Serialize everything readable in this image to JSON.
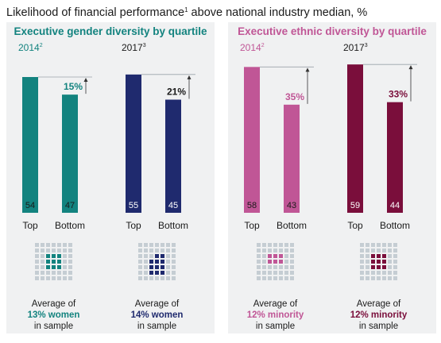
{
  "title": {
    "main": "Likelihood of financial performance",
    "footnote_mark": "1",
    "rest": " above national industry median, %"
  },
  "colors": {
    "teal": "#13837f",
    "navy": "#1f2a6e",
    "pink": "#c05696",
    "maroon": "#7a0e3b",
    "panel_bg": "#f0f1f2",
    "grey_dot": "#c5cdd3",
    "text": "#1a1a1a"
  },
  "panels": [
    {
      "title": "Executive gender diversity by quartile",
      "title_color": "#13837f",
      "charts": [
        {
          "year": "2014",
          "year_note": "2",
          "color": "#13837f",
          "year_color": "#13837f",
          "categories": [
            "Top",
            "Bottom"
          ],
          "values": [
            54,
            47
          ],
          "diff": "15%",
          "diff_color": "#13837f",
          "grid_fill_count": 9,
          "caption": [
            "Average of",
            "13% women",
            "in sample"
          ]
        },
        {
          "year": "2017",
          "year_note": "3",
          "color": "#1f2a6e",
          "year_color": "#1a1a1a",
          "categories": [
            "Top",
            "Bottom"
          ],
          "values": [
            55,
            45
          ],
          "diff": "21%",
          "diff_color": "#1a1a1a",
          "grid_fill_count": 11,
          "caption": [
            "Average of",
            "14% women",
            "in sample"
          ]
        }
      ]
    },
    {
      "title": "Executive ethnic diversity by quartile",
      "title_color": "#c05696",
      "charts": [
        {
          "year": "2014",
          "year_note": "2",
          "color": "#c05696",
          "year_color": "#c05696",
          "categories": [
            "Top",
            "Bottom"
          ],
          "values": [
            58,
            43
          ],
          "diff": "35%",
          "diff_color": "#c05696",
          "grid_fill_count": 6,
          "caption": [
            "Average of",
            "12% minority",
            "in sample"
          ]
        },
        {
          "year": "2017",
          "year_note": "3",
          "color": "#7a0e3b",
          "year_color": "#1a1a1a",
          "categories": [
            "Top",
            "Bottom"
          ],
          "values": [
            59,
            44
          ],
          "diff": "33%",
          "diff_color": "#7a0e3b",
          "grid_fill_count": 9,
          "caption": [
            "Average of",
            "12% minority",
            "in sample"
          ]
        }
      ]
    }
  ],
  "chart_data": [
    {
      "type": "bar",
      "title": "2014",
      "categories": [
        "Top",
        "Bottom"
      ],
      "values": [
        54,
        47
      ]
    },
    {
      "type": "bar",
      "title": "2017",
      "categories": [
        "Top",
        "Bottom"
      ],
      "values": [
        55,
        45
      ]
    },
    {
      "type": "bar",
      "title": "2014",
      "categories": [
        "Top",
        "Bottom"
      ],
      "values": [
        58,
        43
      ]
    },
    {
      "type": "bar",
      "title": "2017",
      "categories": [
        "Top",
        "Bottom"
      ],
      "values": [
        59,
        44
      ]
    }
  ]
}
